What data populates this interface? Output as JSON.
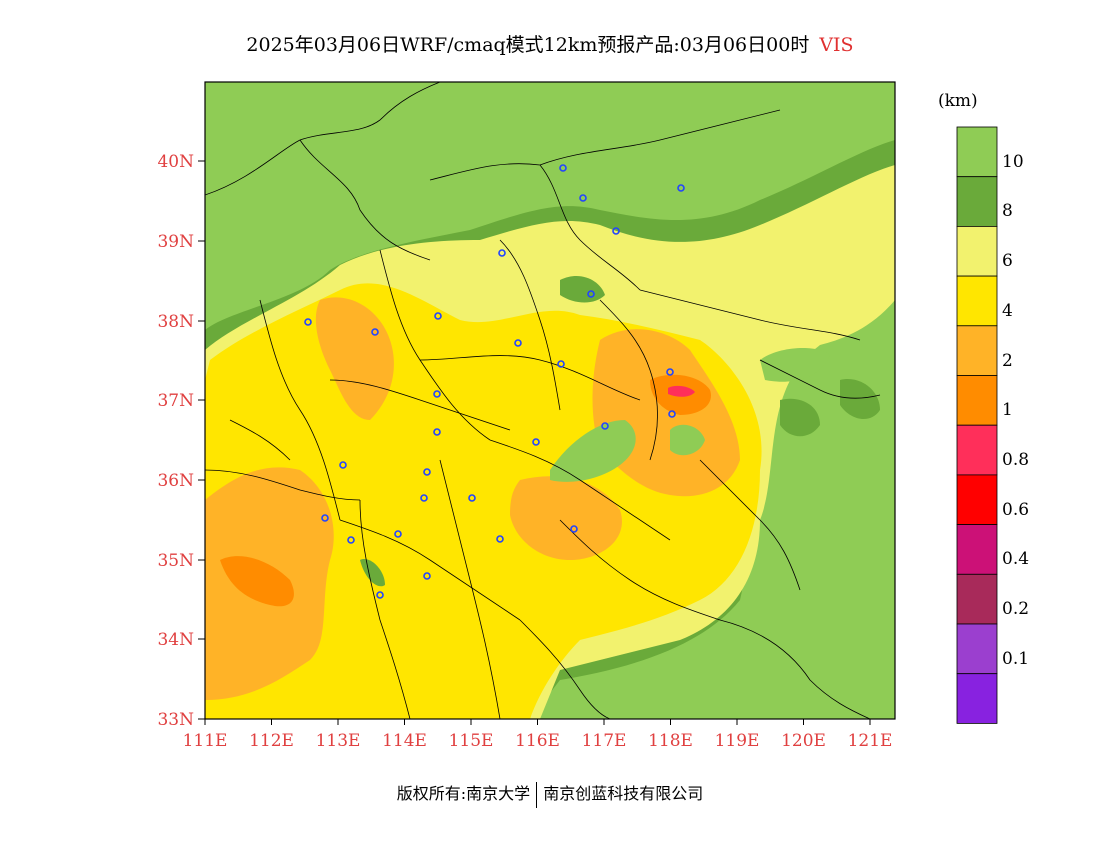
{
  "title": {
    "main": "2025年03月06日WRF/cmaq模式12km预报产品:03月06日00时",
    "variable": "VIS"
  },
  "axes": {
    "lat_labels": [
      "40N",
      "39N",
      "38N",
      "37N",
      "36N",
      "35N",
      "34N",
      "33N"
    ],
    "lon_labels": [
      "111E",
      "112E",
      "113E",
      "114E",
      "115E",
      "116E",
      "117E",
      "118E",
      "119E",
      "120E",
      "121E"
    ]
  },
  "colorbar": {
    "unit": "(km)",
    "levels": [
      "10",
      "8",
      "6",
      "4",
      "2",
      "1",
      "0.8",
      "0.6",
      "0.4",
      "0.2",
      "0.1"
    ],
    "colors": [
      "#8fcc55",
      "#6aaa3a",
      "#f2f26e",
      "#ffe600",
      "#ffb327",
      "#ff8c00",
      "#ff2f5a",
      "#ff0000",
      "#cc1177",
      "#a82a5a",
      "#9b3fcf",
      "#8822e0"
    ]
  },
  "map_colors": {
    "green_light": "#8fcc55",
    "green_dark": "#6aaa3a",
    "yellow_light": "#f2f26e",
    "yellow": "#ffe600",
    "orange_light": "#ffb327",
    "orange": "#ff8c00",
    "magenta": "#ff2f5a"
  },
  "footer": {
    "left": "版权所有:南京大学",
    "right": "南京创蓝科技有限公司"
  }
}
